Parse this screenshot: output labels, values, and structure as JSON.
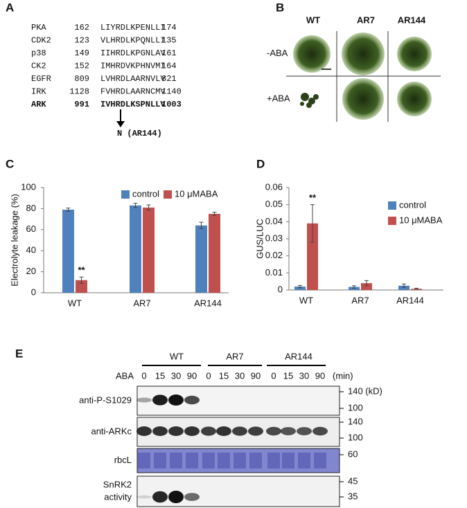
{
  "panel_labels": [
    "A",
    "B",
    "C",
    "D",
    "E"
  ],
  "alignment": {
    "rows": [
      [
        "PKA",
        "162",
        "LIYRDLKPENLLI",
        "174"
      ],
      [
        "CDK2",
        "123",
        "VLHRDLKPQNLLI",
        "135"
      ],
      [
        "p38",
        "149",
        "IIHRDLKPGNLAV",
        "161"
      ],
      [
        "CK2",
        "152",
        "IMHRDVKPHNVMI",
        "164"
      ],
      [
        "EGFR",
        "809",
        "LVHRDLAARNVLV",
        "821"
      ],
      [
        "IRK",
        "1128",
        "FVHRDLAARNCMV",
        "1140"
      ],
      [
        "ARK",
        "991",
        "IVHRDLKSPNLLV",
        "1003"
      ]
    ],
    "mutation": "N (AR144)"
  },
  "photos": {
    "columns": [
      "WT",
      "AR7",
      "AR144"
    ],
    "rows": [
      "-ABA",
      "+ABA"
    ]
  },
  "chart_data": [
    {
      "type": "bar",
      "y_label": "Electrolyte leakage (%)",
      "categories": [
        "WT",
        "AR7",
        "AR144"
      ],
      "series": [
        {
          "name": "control",
          "color": "#4f81bd",
          "values": [
            79,
            83,
            64
          ],
          "errors": [
            1.5,
            2,
            3
          ]
        },
        {
          "name": "10 μMABA",
          "color": "#c0504d",
          "values": [
            12,
            81,
            75
          ],
          "errors": [
            3,
            2.5,
            1.5
          ]
        }
      ],
      "ylim": [
        0,
        100
      ],
      "yticks": [
        0,
        20,
        40,
        60,
        80,
        100
      ],
      "annotation": "**"
    },
    {
      "type": "bar",
      "y_label": "GUS/LUC",
      "categories": [
        "WT",
        "AR7",
        "AR144"
      ],
      "series": [
        {
          "name": "control",
          "color": "#4f81bd",
          "values": [
            0.002,
            0.0018,
            0.0025
          ],
          "errors": [
            0.0007,
            0.0007,
            0.001
          ]
        },
        {
          "name": "10 μMABA",
          "color": "#c0504d",
          "values": [
            0.039,
            0.004,
            0.0007
          ],
          "errors": [
            0.011,
            0.0015,
            0.0003
          ]
        }
      ],
      "ylim": [
        0,
        0.06
      ],
      "yticks": [
        0,
        0.01,
        0.02,
        0.03,
        0.04,
        0.05,
        0.06
      ],
      "annotation": "**"
    }
  ],
  "blot": {
    "groups": [
      "WT",
      "AR7",
      "AR144"
    ],
    "treatment": "ABA",
    "times": [
      "0",
      "15",
      "30",
      "90",
      "0",
      "15",
      "30",
      "90",
      "0",
      "15",
      "30",
      "90"
    ],
    "time_unit": "(min)",
    "rows": [
      {
        "label": [
          "anti-P-S1029"
        ],
        "markers": [
          "140 (kD)",
          "100"
        ]
      },
      {
        "label": [
          "anti-ARKc"
        ],
        "markers": [
          "140",
          "100"
        ]
      },
      {
        "label": [
          "rbcL"
        ],
        "markers": [
          "60"
        ]
      },
      {
        "label": [
          "SnRK2",
          "activity"
        ],
        "markers": [
          "45",
          "35"
        ]
      }
    ]
  }
}
